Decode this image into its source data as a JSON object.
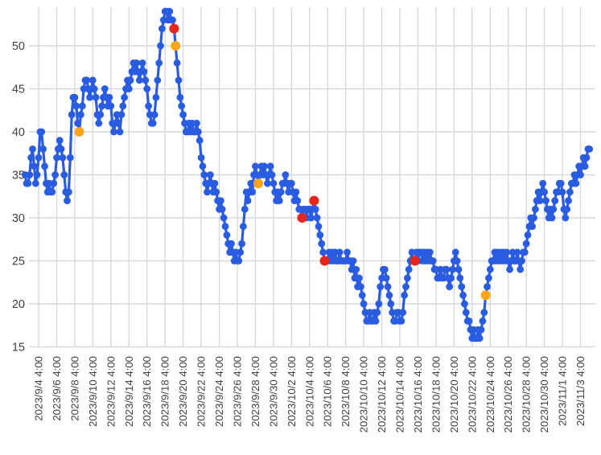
{
  "chart_data": {
    "type": "line",
    "title": "",
    "xlabel": "",
    "ylabel": "",
    "x_start": "2023/9/2 16:00",
    "interval_hours": 4,
    "ylim": [
      15,
      55
    ],
    "grid": true,
    "legend": "none",
    "y_ticks": [
      15,
      20,
      25,
      30,
      35,
      40,
      45,
      50
    ],
    "x_tick_labels": [
      "2023/9/4 4:00",
      "2023/9/6 4:00",
      "2023/9/8 4:00",
      "2023/9/10 4:00",
      "2023/9/12 4:00",
      "2023/9/14 4:00",
      "2023/9/16 4:00",
      "2023/9/18 4:00",
      "2023/9/20 4:00",
      "2023/9/22 4:00",
      "2023/9/24 4:00",
      "2023/9/26 4:00",
      "2023/9/28 4:00",
      "2023/9/30 4:00",
      "2023/10/2 4:00",
      "2023/10/4 4:00",
      "2023/10/6 4:00",
      "2023/10/8 4:00",
      "2023/10/10 4:00",
      "2023/10/12 4:00",
      "2023/10/14 4:00",
      "2023/10/16 4:00",
      "2023/10/18 4:00",
      "2023/10/20 4:00",
      "2023/10/22 4:00",
      "2023/10/24 4:00",
      "2023/10/26 4:00",
      "2023/10/28 4:00",
      "2023/10/30 4:00",
      "2023/11/1 4:00",
      "2023/11/3 4:00"
    ],
    "values": [
      35,
      34,
      34,
      35,
      37,
      38,
      36,
      34,
      35,
      37,
      40,
      40,
      38,
      36,
      34,
      33,
      34,
      33,
      33,
      34,
      35,
      37,
      38,
      39,
      38,
      37,
      35,
      33,
      32,
      33,
      37,
      42,
      44,
      44,
      43,
      41,
      40,
      42,
      43,
      45,
      46,
      46,
      45,
      44,
      45,
      46,
      45,
      44,
      42,
      41,
      42,
      43,
      44,
      45,
      44,
      43,
      44,
      43,
      41,
      40,
      41,
      42,
      41,
      40,
      42,
      43,
      44,
      45,
      46,
      45,
      46,
      47,
      48,
      47,
      48,
      47,
      46,
      47,
      48,
      47,
      46,
      45,
      43,
      42,
      41,
      41,
      42,
      44,
      46,
      48,
      50,
      52,
      53,
      54,
      54,
      53,
      54,
      53,
      53,
      52,
      50,
      48,
      46,
      44,
      43,
      42,
      41,
      40,
      40,
      41,
      40,
      41,
      40,
      40,
      41,
      40,
      39,
      37,
      36,
      35,
      34,
      33,
      34,
      35,
      34,
      33,
      34,
      33,
      32,
      31,
      32,
      31,
      30,
      29,
      28,
      27,
      26,
      27,
      26,
      25,
      26,
      25,
      25,
      26,
      27,
      29,
      31,
      33,
      32,
      33,
      34,
      33,
      35,
      36,
      35,
      34,
      35,
      36,
      35,
      36,
      35,
      34,
      35,
      36,
      35,
      34,
      33,
      32,
      33,
      32,
      33,
      34,
      34,
      35,
      34,
      33,
      34,
      34,
      33,
      32,
      33,
      32,
      31,
      31,
      30,
      31,
      31,
      30,
      31,
      31,
      30,
      31,
      32,
      31,
      30,
      29,
      28,
      27,
      26,
      25,
      25,
      25,
      26,
      25,
      26,
      25,
      26,
      25,
      25,
      26,
      25,
      25,
      25,
      25,
      26,
      25,
      25,
      24,
      25,
      23,
      24,
      22,
      23,
      22,
      21,
      20,
      19,
      18,
      18,
      19,
      18,
      18,
      19,
      18,
      19,
      20,
      22,
      23,
      24,
      24,
      23,
      22,
      21,
      20,
      19,
      18,
      18,
      19,
      19,
      18,
      18,
      19,
      21,
      22,
      23,
      24,
      25,
      26,
      25,
      25,
      26,
      25,
      26,
      26,
      25,
      26,
      25,
      26,
      25,
      26,
      25,
      25,
      24,
      24,
      23,
      23,
      24,
      23,
      23,
      24,
      24,
      23,
      22,
      23,
      24,
      25,
      26,
      25,
      24,
      23,
      22,
      21,
      20,
      19,
      18,
      18,
      17,
      16,
      17,
      16,
      16,
      17,
      16,
      17,
      18,
      19,
      21,
      22,
      23,
      24,
      25,
      25,
      26,
      25,
      26,
      25,
      26,
      25,
      26,
      25,
      26,
      25,
      24,
      25,
      26,
      25,
      25,
      26,
      25,
      24,
      25,
      26,
      26,
      27,
      28,
      29,
      30,
      29,
      30,
      31,
      32,
      33,
      32,
      33,
      34,
      33,
      32,
      31,
      30,
      31,
      30,
      31,
      32,
      33,
      33,
      34,
      34,
      33,
      31,
      30,
      31,
      32,
      33,
      34,
      34,
      35,
      34,
      35,
      36,
      35,
      36,
      37,
      36,
      37,
      38,
      38
    ],
    "special_points": [
      {
        "index": 36,
        "value": 40,
        "color": "orange"
      },
      {
        "index": 99,
        "value": 52,
        "color": "red"
      },
      {
        "index": 100,
        "value": 50,
        "color": "orange"
      },
      {
        "index": 155,
        "value": 34,
        "color": "orange"
      },
      {
        "index": 184,
        "value": 30,
        "color": "red"
      },
      {
        "index": 192,
        "value": 32,
        "color": "red"
      },
      {
        "index": 199,
        "value": 25,
        "color": "red"
      },
      {
        "index": 259,
        "value": 25,
        "color": "red"
      },
      {
        "index": 306,
        "value": 21,
        "color": "orange"
      }
    ],
    "colors": {
      "series": "#2a5ce2",
      "orange": "#ffa617",
      "red": "#e92619",
      "gridline": "#d9d9d9",
      "axis_text": "#3f3f3f",
      "background": "#ffffff"
    }
  }
}
